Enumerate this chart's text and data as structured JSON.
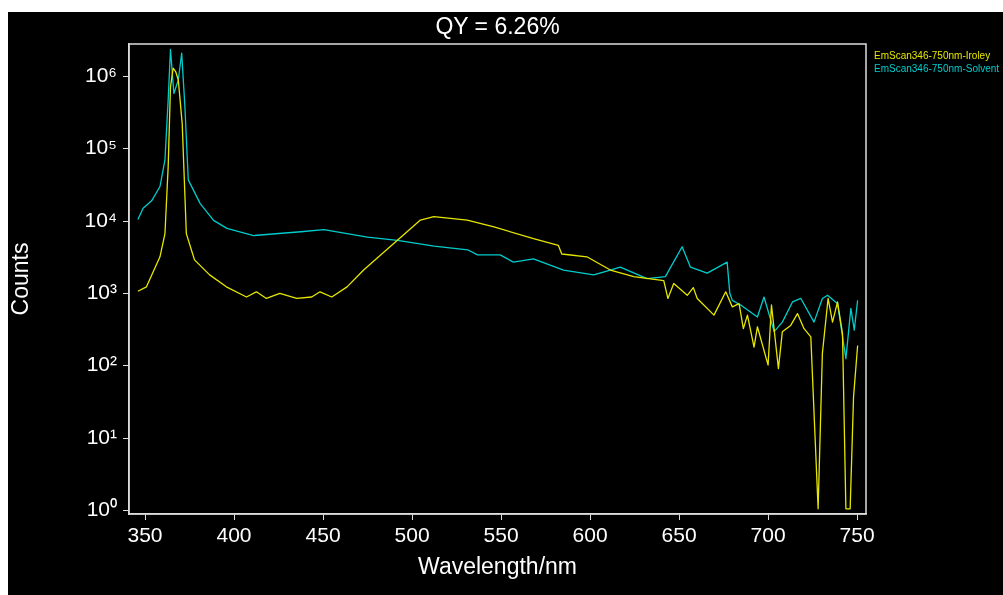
{
  "chart_data": {
    "type": "line",
    "title": "QY = 6.26%",
    "xlabel": "Wavelength/nm",
    "ylabel": "Counts",
    "log": "y",
    "grid": false,
    "legend": "top right",
    "marker": "none",
    "line_style": "solid",
    "xlim": [
      341,
      755
    ],
    "xticks": [
      350,
      400,
      450,
      500,
      550,
      600,
      650,
      700,
      750
    ],
    "ylim": [
      0.89,
      2800000
    ],
    "yticks": [
      {
        "value": 1,
        "label": "10⁰"
      },
      {
        "value": 10,
        "label": "10¹"
      },
      {
        "value": 100,
        "label": "10²"
      },
      {
        "value": 1000,
        "label": "10³"
      },
      {
        "value": 10000,
        "label": "10⁴"
      },
      {
        "value": 100000,
        "label": "10⁵"
      },
      {
        "value": 1000000,
        "label": "10⁶"
      }
    ],
    "series": [
      {
        "name": "EmScan346-750nm-Iroley",
        "color": "#e6e600",
        "x": [
          346,
          350.8,
          358.4,
          361.2,
          363,
          364.3,
          365.8,
          367.3,
          368.7,
          370.9,
          373.2,
          377.8,
          386.3,
          395.7,
          407,
          412.6,
          418.2,
          425.7,
          435.2,
          443.6,
          448.3,
          454.9,
          463.5,
          472.8,
          489.7,
          504.7,
          512.2,
          531,
          546,
          568.2,
          582.2,
          584.1,
          598.2,
          611.4,
          624.5,
          641.4,
          643.7,
          647,
          654.6,
          658,
          660.2,
          669.6,
          676.2,
          679.9,
          683.7,
          686.1,
          688.4,
          692.1,
          694,
          700,
          701.9,
          705.8,
          708,
          712.7,
          716.5,
          720.2,
          724,
          728.1,
          730.5,
          733.7,
          736.2,
          739,
          741.8,
          743.7,
          746.1,
          748,
          750.3
        ],
        "values": [
          1070,
          1230,
          3200,
          6700,
          56000,
          710000,
          1300000,
          1150000,
          890000,
          220000,
          6700,
          2900,
          1800,
          1230,
          890,
          1050,
          850,
          1000,
          850,
          890,
          1050,
          890,
          1230,
          2100,
          4900,
          10300,
          11500,
          10300,
          8300,
          5700,
          4600,
          3500,
          3200,
          2100,
          1700,
          1500,
          850,
          1370,
          940,
          1200,
          850,
          500,
          1050,
          650,
          720,
          325,
          500,
          180,
          345,
          102,
          690,
          91,
          295,
          360,
          525,
          325,
          250,
          1.05,
          148,
          850,
          400,
          760,
          277,
          1.05,
          1.05,
          37,
          190
        ]
      },
      {
        "name": "EmScan346-750nm-Solvent",
        "color": "#00cccc",
        "x": [
          346,
          348.9,
          353.7,
          358.4,
          361.2,
          363,
          364.3,
          366.2,
          368.7,
          370.6,
          372.4,
          374.3,
          381,
          388.5,
          396,
          411,
          437.5,
          450.5,
          474.9,
          491.8,
          512.4,
          531.2,
          536.8,
          549.5,
          557,
          568.2,
          585.1,
          602,
          611.4,
          617,
          632,
          642.3,
          651.7,
          656.4,
          665.8,
          677,
          678.5,
          679.9,
          684.6,
          694,
          697.7,
          703.4,
          708,
          713.7,
          718.4,
          725.8,
          730.5,
          733.4,
          739,
          743.7,
          746.5,
          748.4,
          750.3
        ],
        "values": [
          10500,
          15000,
          19000,
          30000,
          70000,
          470000,
          2350000,
          580000,
          890000,
          2100000,
          380000,
          37000,
          17400,
          10200,
          7900,
          6300,
          7100,
          7600,
          6000,
          5400,
          4500,
          4000,
          3400,
          3400,
          2700,
          3000,
          2100,
          1800,
          2100,
          2300,
          1600,
          1700,
          4400,
          2300,
          1900,
          2700,
          1000,
          800,
          690,
          470,
          890,
          295,
          400,
          760,
          850,
          400,
          850,
          940,
          720,
          125,
          620,
          310,
          800
        ]
      }
    ]
  }
}
